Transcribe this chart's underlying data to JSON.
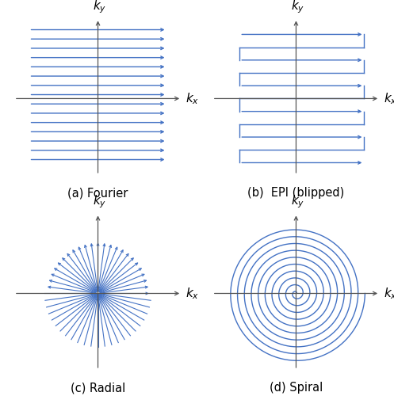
{
  "line_color": "#4472C4",
  "axis_color": "#555555",
  "bg_color": "#ffffff",
  "title_color": "#000000",
  "title_fontsize": 10.5,
  "label_fontsize": 11,
  "fourier_n_lines": 15,
  "epi_n_lines": 11,
  "radial_n_spokes": 24,
  "spiral_n_turns": 10,
  "subplot_labels": [
    "(a) Fourier",
    "(b)  EPI (blipped)",
    "(c) Radial",
    "(d) Spiral"
  ]
}
